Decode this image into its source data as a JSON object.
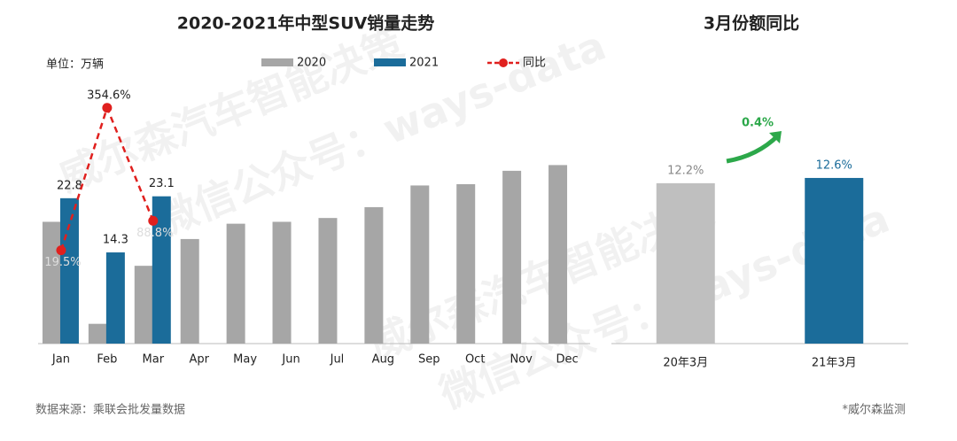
{
  "chart_data": [
    {
      "type": "bar",
      "title": "2020-2021年中型SUV销量走势",
      "unit_label": "单位：万辆",
      "categories": [
        "Jan",
        "Feb",
        "Mar",
        "Apr",
        "May",
        "Jun",
        "Jul",
        "Aug",
        "Sep",
        "Oct",
        "Nov",
        "Dec"
      ],
      "series": [
        {
          "name": "2020",
          "color": "#a6a6a6",
          "values": [
            19.1,
            3.1,
            12.2,
            16.4,
            18.8,
            19.1,
            19.7,
            21.4,
            24.8,
            25.0,
            27.1,
            28.0
          ]
        },
        {
          "name": "2021",
          "color": "#1b6c9a",
          "values": [
            22.8,
            14.3,
            23.1,
            null,
            null,
            null,
            null,
            null,
            null,
            null,
            null,
            null
          ]
        },
        {
          "name": "同比",
          "type": "line",
          "axis": "y2",
          "color": "#e0201e",
          "values": [
            19.5,
            354.6,
            88.8,
            null,
            null,
            null,
            null,
            null,
            null,
            null,
            null,
            null
          ],
          "value_labels": [
            "19.5%",
            "354.6%",
            "88.8%",
            null,
            null,
            null,
            null,
            null,
            null,
            null,
            null,
            null
          ]
        }
      ],
      "ylim": [
        0,
        40
      ],
      "y2lim": [
        -200,
        400
      ],
      "legend": "top"
    },
    {
      "type": "bar",
      "title": "3月份额同比",
      "categories": [
        "20年3月",
        "21年3月"
      ],
      "values": [
        12.2,
        12.6
      ],
      "value_labels": [
        "12.2%",
        "12.6%"
      ],
      "colors": [
        "#bfbfbf",
        "#1b6c9a"
      ],
      "annotation": "0.4%",
      "annotation_color": "#2ca84a",
      "ylim": [
        0,
        19.4
      ]
    }
  ],
  "watermark": [
    "威尔森汽车智能决策",
    "微信公众号：ways-data"
  ],
  "source": "数据来源：乘联会批发量数据",
  "note": "*威尔森监测"
}
